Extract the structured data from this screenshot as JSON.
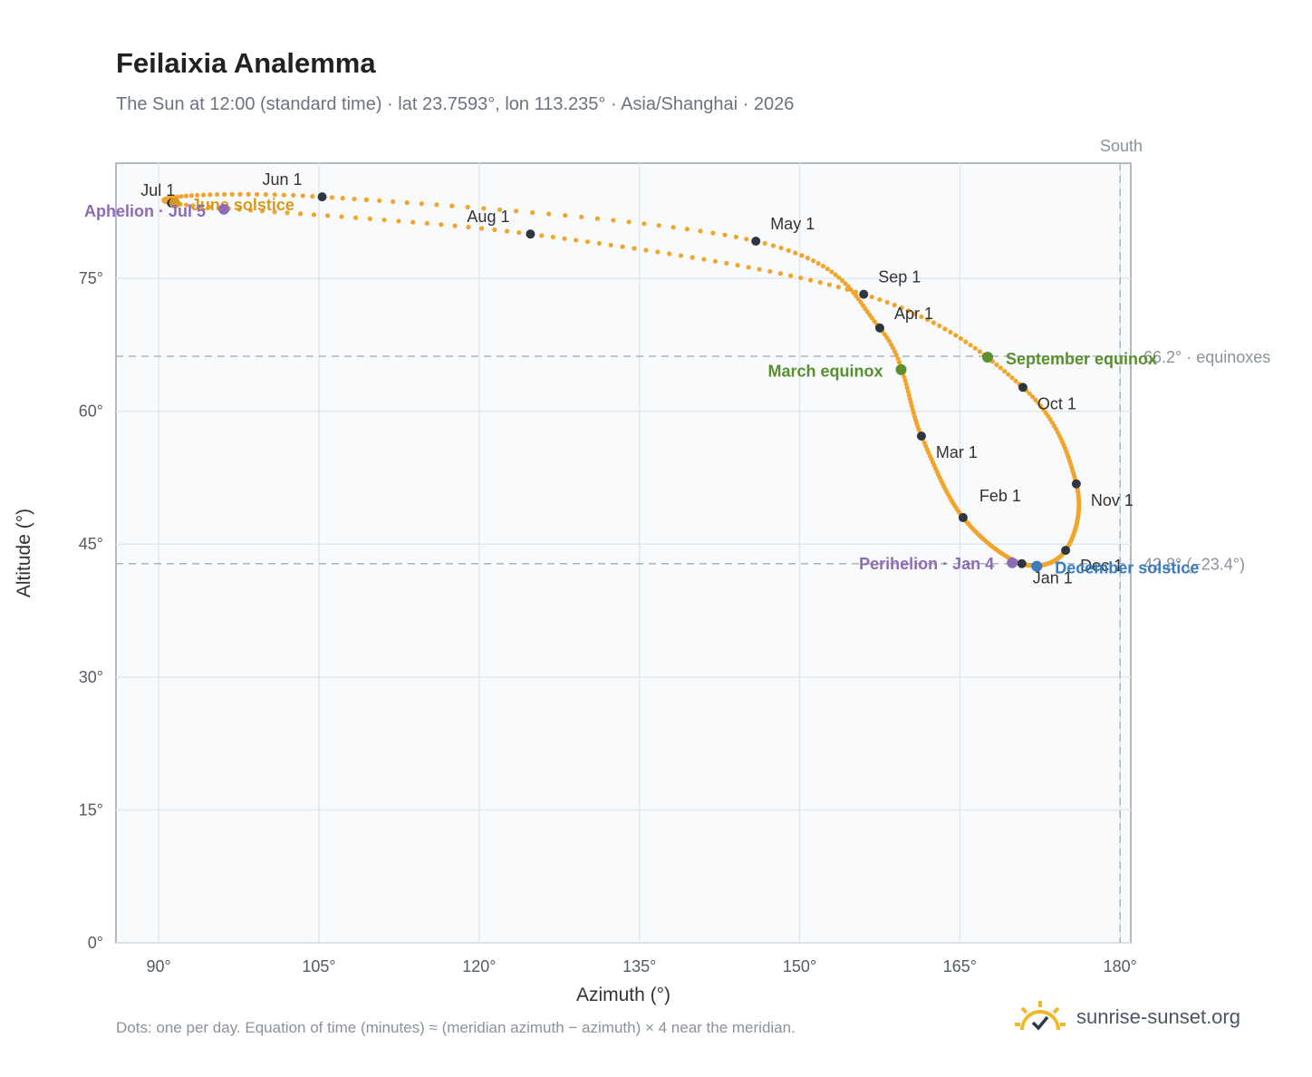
{
  "chart_data": {
    "type": "scatter",
    "title": "Feilaixia Analemma",
    "subtitle": "The Sun at 12:00 (standard time) · lat 23.7593°, lon 113.235° · Asia/Shanghai · 2026",
    "xlabel": "Azimuth (°)",
    "ylabel": "Altitude (°)",
    "xlim": [
      86,
      181
    ],
    "ylim": [
      0,
      88
    ],
    "x_ticks": [
      {
        "value": 90,
        "label": "90°"
      },
      {
        "value": 105,
        "label": "105°"
      },
      {
        "value": 120,
        "label": "120°"
      },
      {
        "value": 135,
        "label": "135°"
      },
      {
        "value": 150,
        "label": "150°"
      },
      {
        "value": 165,
        "label": "165°"
      },
      {
        "value": 180,
        "label": "180°"
      }
    ],
    "y_ticks": [
      {
        "value": 0,
        "label": "0°"
      },
      {
        "value": 15,
        "label": "15°"
      },
      {
        "value": 30,
        "label": "30°"
      },
      {
        "value": 45,
        "label": "45°"
      },
      {
        "value": 60,
        "label": "60°"
      },
      {
        "value": 75,
        "label": "75°"
      }
    ],
    "grid": true,
    "path_color": "#f2a52a",
    "month_points": [
      {
        "label": "Jan 1",
        "az": 170.8,
        "alt": 42.8
      },
      {
        "label": "Feb 1",
        "az": 165.3,
        "alt": 48.0
      },
      {
        "label": "Mar 1",
        "az": 161.4,
        "alt": 57.2
      },
      {
        "label": "Apr 1",
        "az": 157.5,
        "alt": 69.4
      },
      {
        "label": "May 1",
        "az": 145.9,
        "alt": 79.2
      },
      {
        "label": "Jun 1",
        "az": 105.3,
        "alt": 84.2
      },
      {
        "label": "Jul 1",
        "az": 91.2,
        "alt": 83.5
      },
      {
        "label": "Aug 1",
        "az": 124.8,
        "alt": 80.0
      },
      {
        "label": "Sep 1",
        "az": 156.0,
        "alt": 73.2
      },
      {
        "label": "Oct 1",
        "az": 170.9,
        "alt": 62.7
      },
      {
        "label": "Nov 1",
        "az": 175.9,
        "alt": 51.8
      },
      {
        "label": "Dec 1",
        "az": 174.9,
        "alt": 44.3
      }
    ],
    "events": [
      {
        "label": "Perihelion · Jan 4",
        "az": 169.9,
        "alt": 42.9,
        "color": "#8e6bb5"
      },
      {
        "label": "December solstice",
        "az": 172.2,
        "alt": 42.5,
        "color": "#3b7bbf"
      },
      {
        "label": "March equinox",
        "az": 159.5,
        "alt": 64.7,
        "color": "#5a8f2e"
      },
      {
        "label": "September equinox",
        "az": 167.6,
        "alt": 66.1,
        "color": "#5a8f2e"
      },
      {
        "label": "June solstice",
        "az": 91.5,
        "alt": 83.5,
        "color": "#d89a1c"
      },
      {
        "label": "Aphelion · Jul 5",
        "az": 96.1,
        "alt": 82.8,
        "color": "#8e6bb5"
      }
    ],
    "reference_lines": [
      {
        "orientation": "horizontal",
        "value": 66.2,
        "label": "66.2° · equinoxes"
      },
      {
        "orientation": "horizontal",
        "value": 42.8,
        "label": "42.8° (−23.4°)"
      },
      {
        "orientation": "vertical",
        "value": 180,
        "label": "South"
      }
    ]
  },
  "footnote": "Dots: one per day. Equation of time (minutes) ≈ (meridian azimuth − azimuth) × 4 near the meridian.",
  "brand": {
    "name": "sunrise-sunset.org",
    "logo_icon": "sun-check-icon"
  }
}
